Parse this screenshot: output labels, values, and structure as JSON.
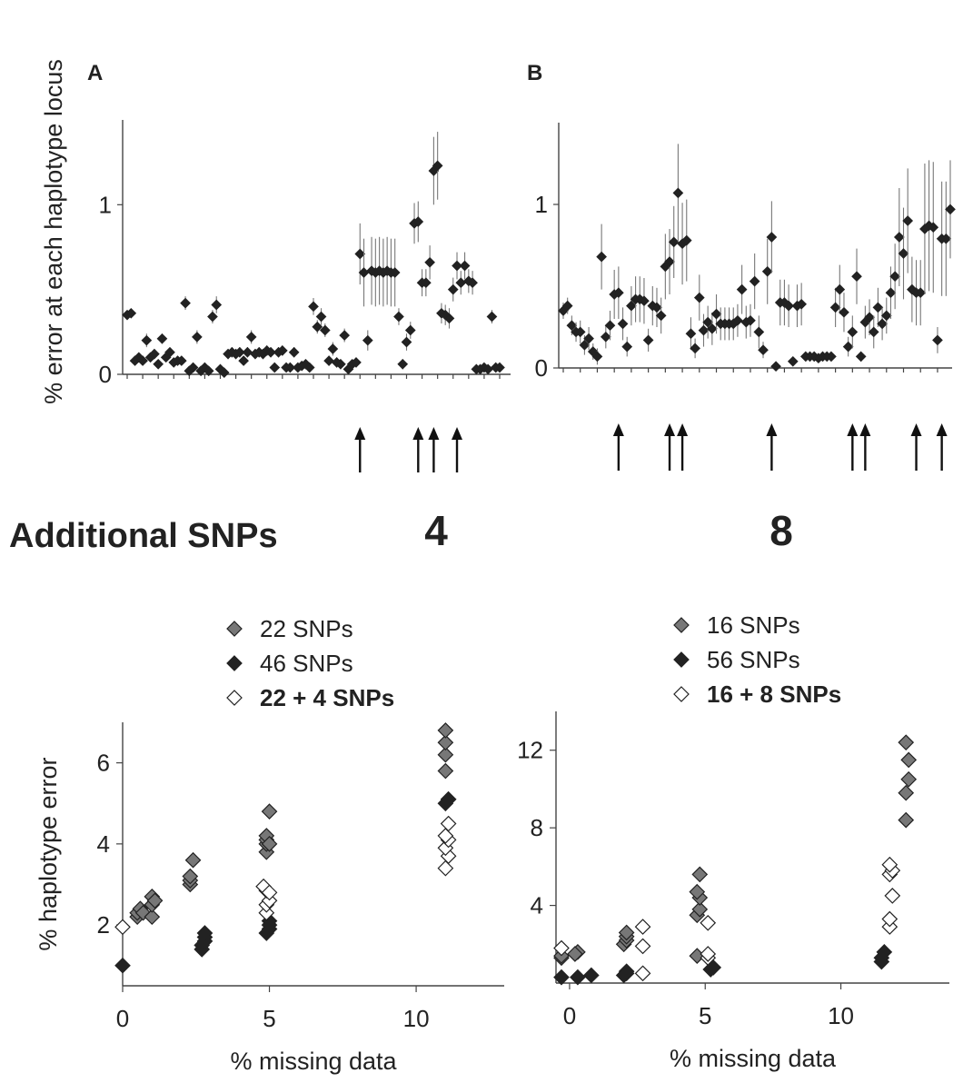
{
  "labels": {
    "panel_a": "A",
    "panel_b": "B",
    "top_ylabel": "% error at each haplotype locus",
    "additional": "Additional SNPs",
    "count_a": "4",
    "count_b": "8"
  },
  "chart_data": [
    {
      "id": "A-top",
      "type": "scatter",
      "title": "",
      "ylabel": "% error at each haplotype locus",
      "xlabel": "",
      "ylim": [
        0,
        1.5
      ],
      "yticks": [
        0,
        1
      ],
      "error_bars": true,
      "series": [
        {
          "name": "",
          "values": [
            0.35,
            0.36,
            0.08,
            0.1,
            0.08,
            0.2,
            0.1,
            0.12,
            0.06,
            0.21,
            0.1,
            0.13,
            0.07,
            0.08,
            0.08,
            0.42,
            0.02,
            0.04,
            0.22,
            0.02,
            0.04,
            0.02,
            0.34,
            0.41,
            0.03,
            0.01,
            0.12,
            0.13,
            0.12,
            0.13,
            0.08,
            0.13,
            0.22,
            0.12,
            0.13,
            0.12,
            0.14,
            0.13,
            0.04,
            0.13,
            0.14,
            0.04,
            0.04,
            0.13,
            0.04,
            0.05,
            0.06,
            0.04,
            0.4,
            0.28,
            0.34,
            0.26,
            0.08,
            0.15,
            0.07,
            0.06,
            0.23,
            0.03,
            0.06,
            0.07,
            0.71,
            0.6,
            0.2,
            0.61,
            0.6,
            0.61,
            0.6,
            0.61,
            0.6,
            0.6,
            0.34,
            0.06,
            0.19,
            0.26,
            0.89,
            0.9,
            0.54,
            0.54,
            0.66,
            1.2,
            1.23,
            0.36,
            0.35,
            0.33,
            0.5,
            0.64,
            0.54,
            0.64,
            0.55,
            0.54,
            0.03,
            0.03,
            0.04,
            0.03,
            0.34,
            0.04,
            0.04
          ],
          "errors": [
            0.02,
            0.02,
            0.02,
            0.02,
            0.02,
            0.04,
            0.02,
            0.02,
            0.02,
            0.03,
            0.02,
            0.02,
            0.02,
            0.02,
            0.02,
            0.04,
            0.02,
            0.02,
            0.04,
            0.02,
            0.02,
            0.02,
            0.04,
            0.05,
            0.02,
            0.02,
            0.03,
            0.03,
            0.03,
            0.03,
            0.02,
            0.03,
            0.04,
            0.03,
            0.03,
            0.03,
            0.03,
            0.03,
            0.02,
            0.03,
            0.03,
            0.02,
            0.02,
            0.03,
            0.02,
            0.02,
            0.02,
            0.02,
            0.05,
            0.04,
            0.05,
            0.04,
            0.03,
            0.04,
            0.03,
            0.03,
            0.04,
            0.02,
            0.02,
            0.03,
            0.18,
            0.2,
            0.06,
            0.2,
            0.2,
            0.2,
            0.2,
            0.2,
            0.2,
            0.2,
            0.05,
            0.03,
            0.05,
            0.05,
            0.12,
            0.12,
            0.08,
            0.08,
            0.1,
            0.2,
            0.2,
            0.06,
            0.06,
            0.06,
            0.07,
            0.08,
            0.07,
            0.08,
            0.07,
            0.07,
            0.02,
            0.02,
            0.02,
            0.02,
            0.04,
            0.02,
            0.02
          ]
        }
      ],
      "arrows_at_index": [
        60,
        75,
        79,
        85
      ]
    },
    {
      "id": "B-top",
      "type": "scatter",
      "title": "",
      "ylabel": "",
      "xlabel": "",
      "ylim": [
        0,
        1.5
      ],
      "yticks": [
        0,
        1
      ],
      "error_bars": true,
      "series": [
        {
          "name": "",
          "values": [
            0.35,
            0.38,
            0.26,
            0.22,
            0.22,
            0.14,
            0.18,
            0.1,
            0.07,
            0.68,
            0.19,
            0.26,
            0.45,
            0.46,
            0.27,
            0.13,
            0.38,
            0.42,
            0.42,
            0.41,
            0.17,
            0.38,
            0.37,
            0.32,
            0.62,
            0.65,
            0.77,
            1.07,
            0.76,
            0.78,
            0.21,
            0.12,
            0.43,
            0.23,
            0.28,
            0.24,
            0.33,
            0.27,
            0.27,
            0.27,
            0.27,
            0.29,
            0.48,
            0.28,
            0.29,
            0.53,
            0.22,
            0.11,
            0.59,
            0.8,
            0.01,
            0.4,
            0.4,
            0.38,
            0.04,
            0.38,
            0.39,
            0.07,
            0.07,
            0.07,
            0.06,
            0.07,
            0.07,
            0.07,
            0.37,
            0.48,
            0.34,
            0.13,
            0.22,
            0.56,
            0.07,
            0.28,
            0.31,
            0.22,
            0.37,
            0.27,
            0.32,
            0.46,
            0.56,
            0.8,
            0.7,
            0.9,
            0.48,
            0.46,
            0.46,
            0.85,
            0.87,
            0.86,
            0.17,
            0.79,
            0.79,
            0.97
          ],
          "errors": [
            0.05,
            0.05,
            0.06,
            0.06,
            0.07,
            0.06,
            0.07,
            0.05,
            0.05,
            0.2,
            0.07,
            0.09,
            0.15,
            0.16,
            0.1,
            0.06,
            0.12,
            0.14,
            0.14,
            0.14,
            0.07,
            0.12,
            0.12,
            0.11,
            0.2,
            0.2,
            0.22,
            0.3,
            0.25,
            0.25,
            0.1,
            0.06,
            0.14,
            0.1,
            0.1,
            0.1,
            0.12,
            0.1,
            0.1,
            0.1,
            0.1,
            0.1,
            0.15,
            0.1,
            0.1,
            0.17,
            0.1,
            0.05,
            0.2,
            0.22,
            0.01,
            0.14,
            0.14,
            0.13,
            0.02,
            0.13,
            0.13,
            0.02,
            0.02,
            0.02,
            0.02,
            0.02,
            0.02,
            0.02,
            0.12,
            0.15,
            0.12,
            0.06,
            0.1,
            0.17,
            0.03,
            0.1,
            0.11,
            0.1,
            0.12,
            0.1,
            0.11,
            0.16,
            0.2,
            0.3,
            0.28,
            0.32,
            0.2,
            0.2,
            0.2,
            0.4,
            0.4,
            0.4,
            0.08,
            0.35,
            0.35,
            0.3
          ]
        }
      ],
      "arrows_at_index": [
        13,
        25,
        28,
        49,
        68,
        71,
        83,
        89
      ]
    },
    {
      "id": "A-bottom",
      "type": "scatter",
      "title": "",
      "xlabel": "% missing data",
      "ylabel": "% haplotype error",
      "xlim": [
        0,
        13
      ],
      "ylim": [
        0.5,
        7
      ],
      "xticks": [
        0,
        5,
        10
      ],
      "yticks": [
        2,
        4,
        6
      ],
      "legend_position": "top",
      "series": [
        {
          "name": "22 SNPs",
          "color": "#777777",
          "x": [
            0.5,
            0.5,
            0.6,
            0.7,
            1.0,
            1.0,
            1.0,
            1.1,
            2.3,
            2.3,
            2.3,
            2.4,
            4.9,
            4.9,
            4.9,
            4.9,
            5.0,
            5.0,
            11.0,
            11.0,
            11.0,
            11.0,
            11.1
          ],
          "y": [
            2.2,
            2.3,
            2.4,
            2.3,
            2.2,
            2.5,
            2.7,
            2.6,
            3.0,
            3.1,
            3.2,
            3.6,
            3.8,
            4.0,
            4.1,
            4.2,
            4.8,
            4.0,
            5.8,
            6.2,
            6.5,
            6.8,
            5.1
          ]
        },
        {
          "name": "46 SNPs",
          "color": "#222222",
          "x": [
            0.0,
            2.7,
            2.7,
            2.8,
            2.8,
            2.8,
            4.9,
            5.0,
            5.0,
            5.0,
            11.0,
            11.1
          ],
          "y": [
            1.0,
            1.4,
            1.5,
            1.6,
            1.7,
            1.8,
            1.8,
            1.9,
            2.0,
            2.1,
            5.0,
            5.1
          ]
        },
        {
          "name": "22 + 4 SNPs",
          "color": "#ffffff",
          "x": [
            0.0,
            4.9,
            4.9,
            5.0,
            4.9,
            4.8,
            5.0,
            11.0,
            11.1,
            11.0,
            11.1,
            11.0,
            11.1
          ],
          "y": [
            1.95,
            2.3,
            2.5,
            2.6,
            2.85,
            2.95,
            2.8,
            3.4,
            3.7,
            3.9,
            4.1,
            4.2,
            4.5
          ]
        }
      ]
    },
    {
      "id": "B-bottom",
      "type": "scatter",
      "title": "",
      "xlabel": "% missing data",
      "ylabel": "",
      "xlim": [
        -0.5,
        14
      ],
      "ylim": [
        0,
        14
      ],
      "xticks": [
        0,
        5,
        10
      ],
      "yticks": [
        4,
        8,
        12
      ],
      "legend_position": "top",
      "series": [
        {
          "name": "16 SNPs",
          "color": "#777777",
          "x": [
            -0.3,
            -0.3,
            0.3,
            0.2,
            2.0,
            2.1,
            2.1,
            2.1,
            4.7,
            4.8,
            4.8,
            4.7,
            4.8,
            4.7,
            12.4,
            12.4,
            12.5,
            12.5,
            12.4
          ],
          "y": [
            1.3,
            1.4,
            1.6,
            1.5,
            2.0,
            2.2,
            2.4,
            2.6,
            3.5,
            3.8,
            4.4,
            4.7,
            5.6,
            1.4,
            8.4,
            9.8,
            10.5,
            11.5,
            12.4
          ]
        },
        {
          "name": "56 SNPs",
          "color": "#222222",
          "x": [
            -0.3,
            0.3,
            0.8,
            2.0,
            2.1,
            2.1,
            5.2,
            5.3,
            11.5,
            11.5,
            11.6
          ],
          "y": [
            0.3,
            0.3,
            0.4,
            0.4,
            0.5,
            0.6,
            0.7,
            0.8,
            1.1,
            1.3,
            1.6
          ]
        },
        {
          "name": "16 + 8 SNPs",
          "color": "#ffffff",
          "x": [
            -0.3,
            2.7,
            2.7,
            2.7,
            5.1,
            5.1,
            5.1,
            11.8,
            11.8,
            11.9,
            11.8,
            11.9,
            11.8
          ],
          "y": [
            1.8,
            0.5,
            1.9,
            2.9,
            1.3,
            1.5,
            3.1,
            2.9,
            3.3,
            4.5,
            5.6,
            5.8,
            6.1
          ]
        }
      ]
    }
  ]
}
